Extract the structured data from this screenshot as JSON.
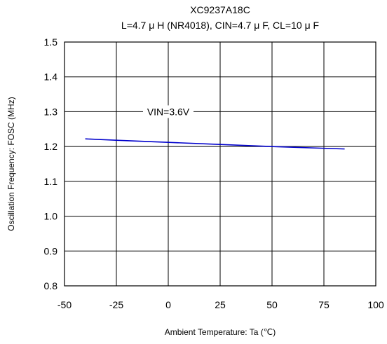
{
  "chart_data": {
    "type": "line",
    "title": "XC9237A18C",
    "subtitle": "L=4.7 μ H (NR4018), CIN=4.7 μ F, CL=10 μ F",
    "xlabel": "Ambient Temperature: Ta (℃)",
    "ylabel": "Oscillation Frequency: FOSC (MHz)",
    "xlim": [
      -50,
      100
    ],
    "ylim": [
      0.8,
      1.5
    ],
    "xticks": [
      -50,
      -25,
      0,
      25,
      50,
      75,
      100
    ],
    "yticks": [
      0.8,
      0.9,
      1.0,
      1.1,
      1.2,
      1.3,
      1.4,
      1.5
    ],
    "xtick_labels": [
      "-50",
      "-25",
      "0",
      "25",
      "50",
      "75",
      "100"
    ],
    "ytick_labels": [
      "0.8",
      "0.9",
      "1.0",
      "1.1",
      "1.2",
      "1.3",
      "1.4",
      "1.5"
    ],
    "grid": true,
    "series": [
      {
        "name": "VIN=3.6V",
        "color": "#0000cc",
        "x": [
          -40,
          -25,
          0,
          25,
          50,
          85
        ],
        "y": [
          1.222,
          1.218,
          1.212,
          1.206,
          1.2,
          1.193
        ]
      }
    ]
  }
}
